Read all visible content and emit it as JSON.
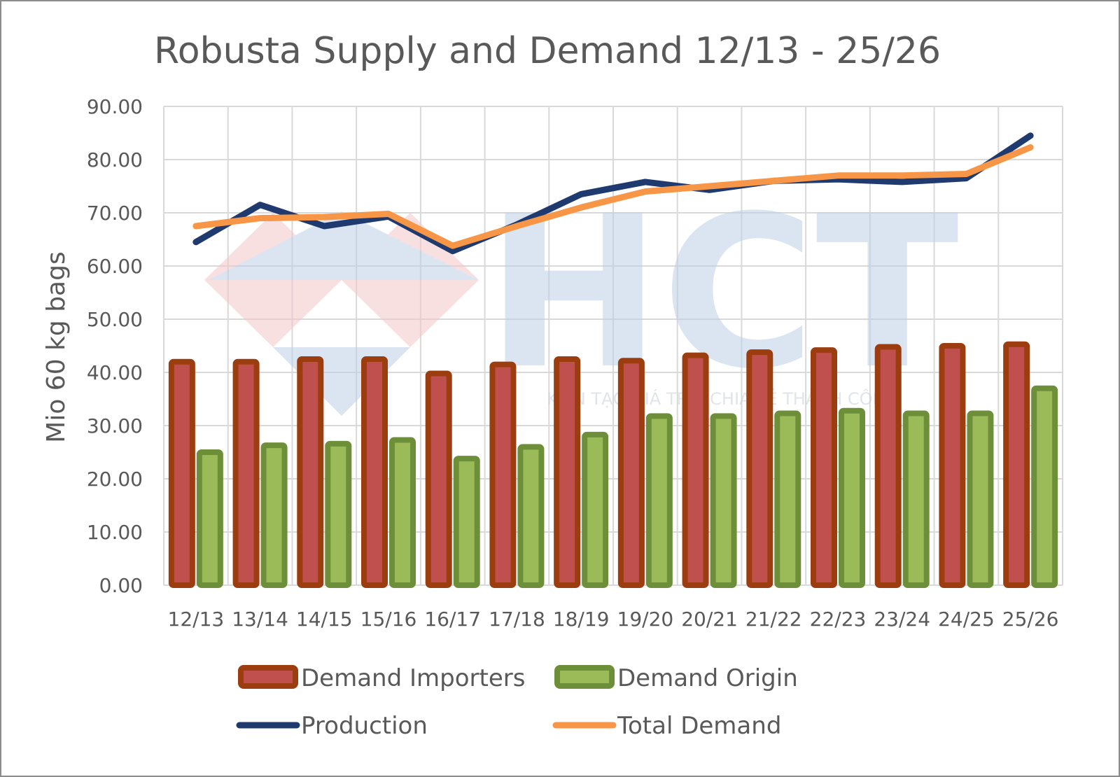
{
  "chart_data": {
    "type": "bar",
    "title": "Robusta Supply and Demand 12/13 - 25/26",
    "xlabel": "",
    "ylabel": "Mio 60 kg bags",
    "ylim": [
      0,
      90
    ],
    "yticks": [
      "0.00",
      "10.00",
      "20.00",
      "30.00",
      "40.00",
      "50.00",
      "60.00",
      "70.00",
      "80.00",
      "90.00"
    ],
    "grid": true,
    "legend_position": "bottom",
    "categories": [
      "12/13",
      "13/14",
      "14/15",
      "15/16",
      "16/17",
      "17/18",
      "18/19",
      "19/20",
      "20/21",
      "21/22",
      "22/23",
      "23/24",
      "24/25",
      "25/26"
    ],
    "series": [
      {
        "name": "Demand Importers",
        "kind": "bar",
        "color": "#c0504d",
        "border": "#9c3d0f",
        "values": [
          42.0,
          42.0,
          42.5,
          42.5,
          39.8,
          41.5,
          42.5,
          42.2,
          43.2,
          43.8,
          44.2,
          44.8,
          45.0,
          45.3
        ]
      },
      {
        "name": "Demand Origin",
        "kind": "bar",
        "color": "#9bbb59",
        "border": "#6e8f3a",
        "values": [
          25.0,
          26.3,
          26.6,
          27.3,
          23.8,
          26.0,
          28.3,
          31.8,
          31.8,
          32.3,
          32.8,
          32.3,
          32.3,
          37.0
        ]
      },
      {
        "name": "Production",
        "kind": "line",
        "color": "#1f3a6e",
        "values": [
          64.5,
          71.5,
          67.5,
          69.3,
          62.8,
          67.8,
          73.5,
          75.8,
          74.3,
          76.0,
          76.3,
          75.8,
          76.5,
          84.5
        ]
      },
      {
        "name": "Total Demand",
        "kind": "line",
        "color": "#f79646",
        "values": [
          67.5,
          69.0,
          69.2,
          69.8,
          63.8,
          67.5,
          71.0,
          74.0,
          75.0,
          76.0,
          77.0,
          77.0,
          77.3,
          82.3
        ]
      }
    ]
  },
  "watermark": {
    "logo_text": "HCT",
    "tagline": "KIẾN TẠO GIÁ TRỊ - CHIA SẺ THÀNH CÔNG"
  }
}
